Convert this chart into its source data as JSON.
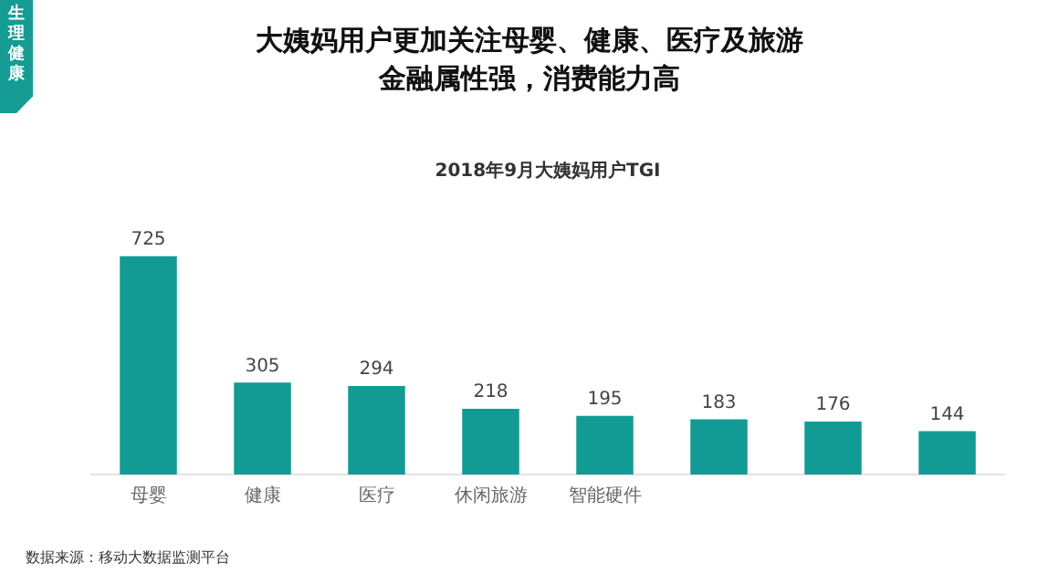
{
  "chart_data": {
    "type": "bar",
    "title": "大姨妈用户更加关注母婴、健康、医疗及旅游金融属性强，消费能力高",
    "subtitle": "2018年9月大姨妈用户TGI",
    "categories": [
      "母婴",
      "健康",
      "医疗",
      "休闲旅游",
      "智能硬件",
      null,
      null,
      null
    ],
    "values": [
      725,
      305,
      294,
      218,
      195,
      183,
      176,
      144
    ],
    "color": "#129b94",
    "data_labels": true,
    "grid": false,
    "legend": false,
    "tick_labels": "x",
    "annotations": [
      "生理健康",
      "数据来源：移动大数据监测平台"
    ]
  }
}
